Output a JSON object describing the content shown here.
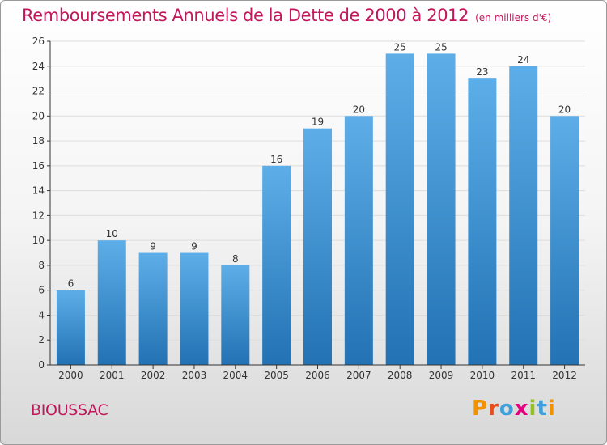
{
  "header": {
    "title": "Remboursements Annuels de la Dette de 2000 à 2012",
    "subtitle": "(en milliers d'€)"
  },
  "footer": {
    "commune": "BIOUSSAC",
    "logo_letters": [
      "P",
      "r",
      "o",
      "x",
      "i",
      "t",
      "i"
    ]
  },
  "colors": {
    "title": "#c2185b",
    "bar_top": "#5daee8",
    "bar_bottom": "#2272b4",
    "axis": "#333333",
    "grid": "#dddddd"
  },
  "chart_data": {
    "type": "bar",
    "title": "Remboursements Annuels de la Dette de 2000 à 2012",
    "subtitle": "(en milliers d'€)",
    "categories": [
      "2000",
      "2001",
      "2002",
      "2003",
      "2004",
      "2005",
      "2006",
      "2007",
      "2008",
      "2009",
      "2010",
      "2011",
      "2012"
    ],
    "values": [
      6,
      10,
      9,
      9,
      8,
      16,
      19,
      20,
      25,
      25,
      23,
      24,
      20
    ],
    "ylim": [
      0,
      26
    ],
    "yticks": [
      0,
      2,
      4,
      6,
      8,
      10,
      12,
      14,
      16,
      18,
      20,
      22,
      24,
      26
    ],
    "grid": true,
    "data_labels": true
  }
}
